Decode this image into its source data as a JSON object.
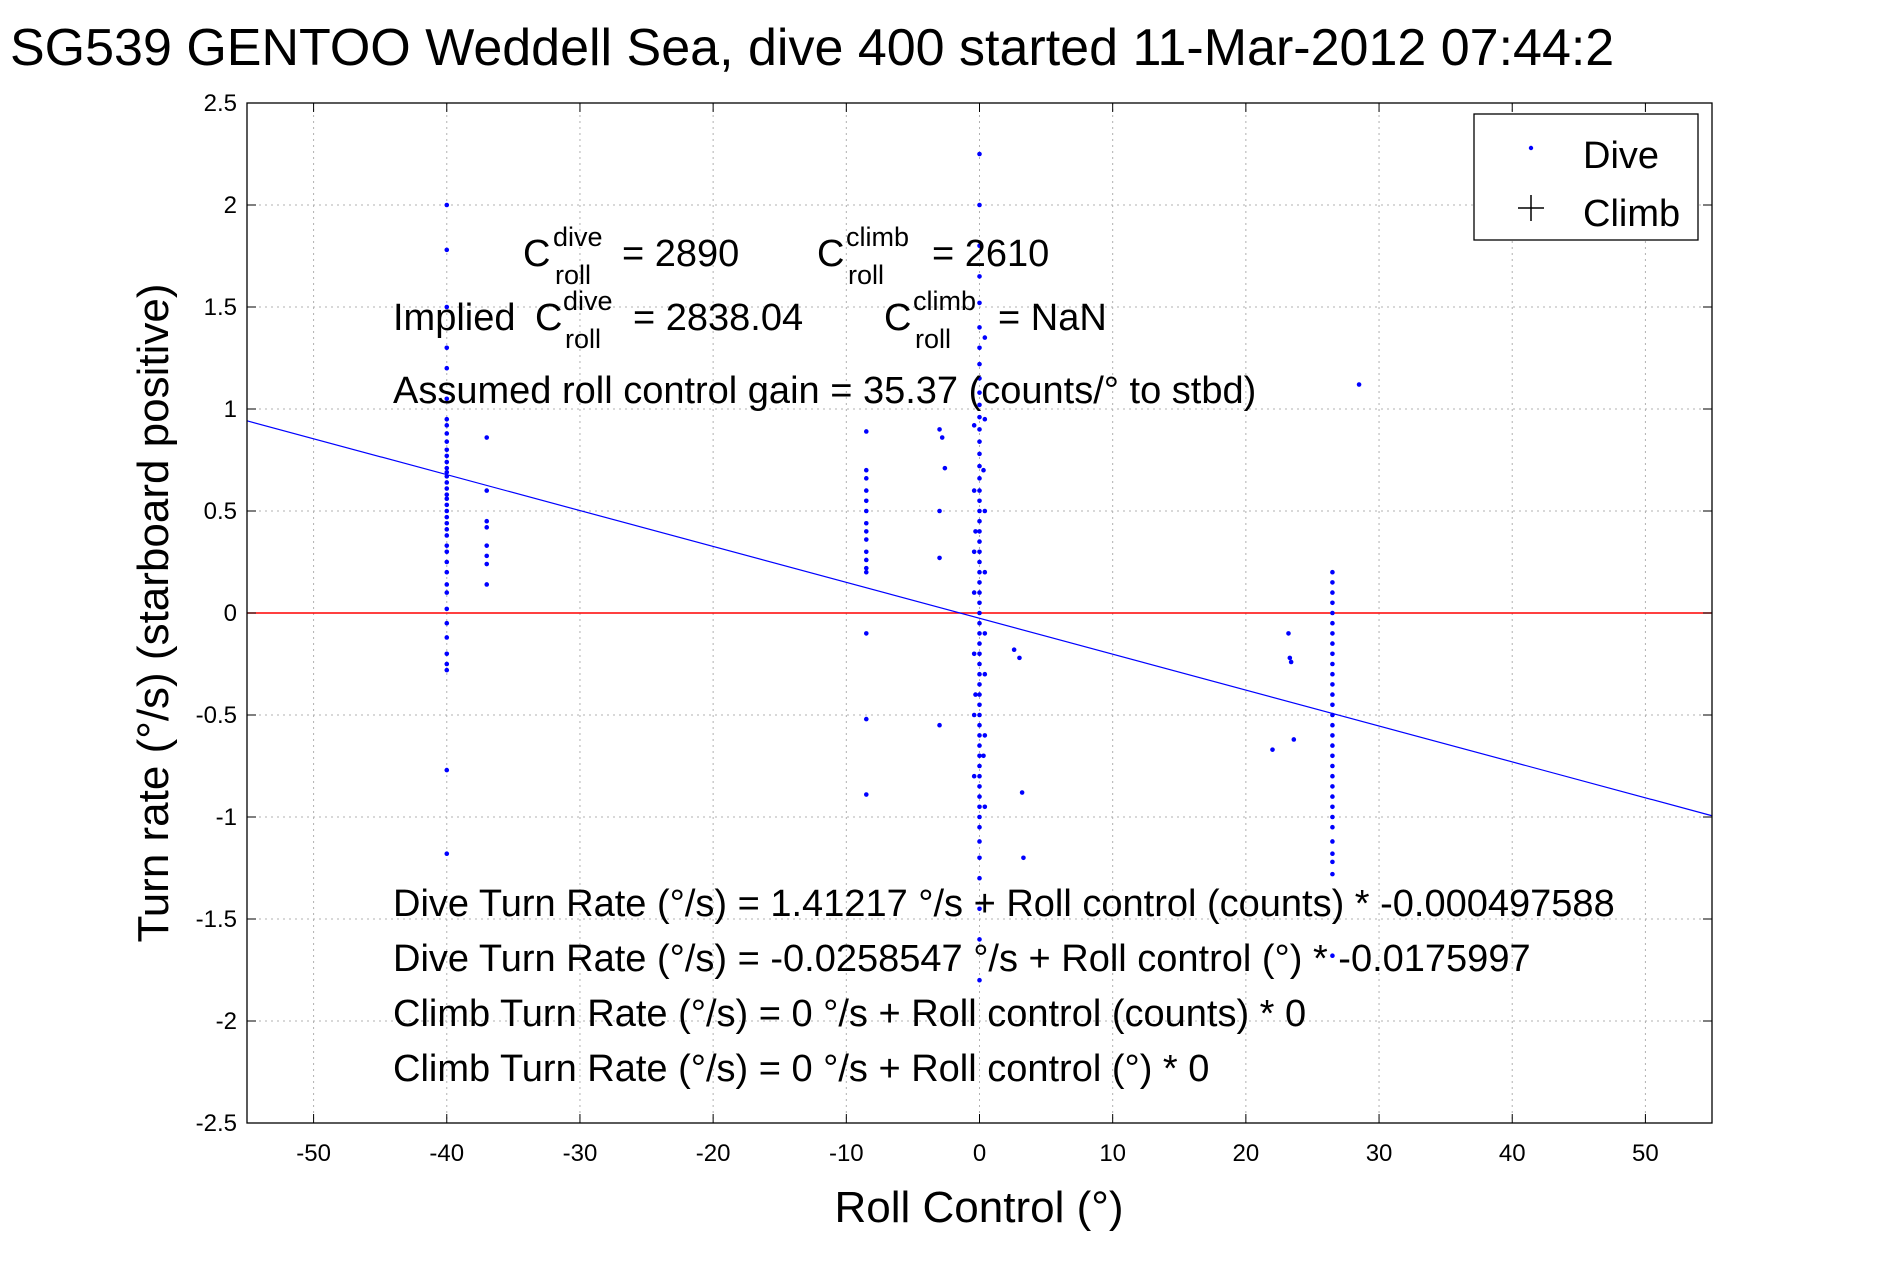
{
  "chart_data": {
    "type": "scatter",
    "title": "SG539 GENTOO Weddell Sea, dive 400 started 11-Mar-2012 07:44:2",
    "xlabel": "Roll Control (°)",
    "ylabel": "Turn rate (°/s) (starboard positive)",
    "xlim": [
      -55,
      55
    ],
    "ylim": [
      -2.5,
      2.5
    ],
    "xticks": [
      "-50",
      "-40",
      "-30",
      "-20",
      "-10",
      "0",
      "10",
      "20",
      "30",
      "40",
      "50"
    ],
    "yticks": [
      "-2.5",
      "-2",
      "-1.5",
      "-1",
      "-0.5",
      "0",
      "0.5",
      "1",
      "1.5",
      "2",
      "2.5"
    ],
    "grid": true,
    "legend": {
      "position": "top-right",
      "entries": [
        {
          "name": "Dive",
          "marker": "dot",
          "color": "#0000ff"
        },
        {
          "name": "Climb",
          "marker": "plus",
          "color": "#000000"
        }
      ]
    },
    "colors": {
      "dive": "#0000ff",
      "zero_line": "#ff0000",
      "fit_line": "#0000ff"
    },
    "reference_lines": [
      {
        "kind": "horizontal",
        "y": 0,
        "color": "#ff0000"
      },
      {
        "kind": "fit",
        "intercept": -0.0258547,
        "slope": -0.0175997,
        "color": "#0000ff"
      }
    ],
    "annotations": {
      "c_dive": {
        "base": "C",
        "sup": "dive",
        "sub": "roll",
        "value": "= 2890"
      },
      "c_climb": {
        "base": "C",
        "sup": "climb",
        "sub": "roll",
        "value": "= 2610"
      },
      "implied_prefix": "Implied",
      "implied_dive": {
        "base": "C",
        "sup": "dive",
        "sub": "roll",
        "value": "= 2838.04"
      },
      "implied_climb": {
        "base": "C",
        "sup": "climb",
        "sub": "roll",
        "value": "= NaN"
      },
      "gain": "Assumed roll control gain = 35.37 (counts/° to stbd)",
      "equations": [
        "Dive Turn Rate (°/s) = 1.41217 °/s + Roll control (counts) * -0.000497588",
        "Dive Turn Rate (°/s) = -0.0258547 °/s + Roll control (°) * -0.0175997",
        "Climb Turn Rate (°/s) = 0 °/s + Roll control (counts) * 0",
        "Climb Turn Rate (°/s) = 0 °/s + Roll control (°) * 0"
      ]
    },
    "series": [
      {
        "name": "Dive",
        "marker": "dot",
        "color": "#0000ff",
        "points": [
          [
            -40,
            2.0
          ],
          [
            -40,
            1.78
          ],
          [
            -40,
            1.5
          ],
          [
            -40,
            1.3
          ],
          [
            -40,
            1.2
          ],
          [
            -40,
            1.05
          ],
          [
            -40,
            0.95
          ],
          [
            -40,
            0.92
          ],
          [
            -40,
            0.88
          ],
          [
            -40,
            0.84
          ],
          [
            -40,
            0.8
          ],
          [
            -40,
            0.77
          ],
          [
            -40,
            0.74
          ],
          [
            -40,
            0.71
          ],
          [
            -40,
            0.69
          ],
          [
            -40,
            0.67
          ],
          [
            -40,
            0.64
          ],
          [
            -40,
            0.61
          ],
          [
            -40,
            0.58
          ],
          [
            -40,
            0.56
          ],
          [
            -40,
            0.53
          ],
          [
            -40,
            0.5
          ],
          [
            -40,
            0.47
          ],
          [
            -40,
            0.44
          ],
          [
            -40,
            0.41
          ],
          [
            -40,
            0.38
          ],
          [
            -40,
            0.33
          ],
          [
            -40,
            0.3
          ],
          [
            -40,
            0.25
          ],
          [
            -40,
            0.2
          ],
          [
            -40,
            0.14
          ],
          [
            -40,
            0.1
          ],
          [
            -40,
            0.02
          ],
          [
            -40,
            -0.05
          ],
          [
            -40,
            -0.12
          ],
          [
            -40,
            -0.2
          ],
          [
            -40,
            -0.25
          ],
          [
            -40,
            -0.28
          ],
          [
            -40,
            -0.77
          ],
          [
            -40,
            -1.18
          ],
          [
            -37,
            0.86
          ],
          [
            -37,
            0.6
          ],
          [
            -37,
            0.45
          ],
          [
            -37,
            0.42
          ],
          [
            -37,
            0.33
          ],
          [
            -37,
            0.28
          ],
          [
            -37,
            0.24
          ],
          [
            -37,
            0.14
          ],
          [
            -8.5,
            0.89
          ],
          [
            -8.5,
            0.7
          ],
          [
            -8.5,
            0.66
          ],
          [
            -8.5,
            0.6
          ],
          [
            -8.5,
            0.55
          ],
          [
            -8.5,
            0.5
          ],
          [
            -8.5,
            0.44
          ],
          [
            -8.5,
            0.4
          ],
          [
            -8.5,
            0.36
          ],
          [
            -8.5,
            0.3
          ],
          [
            -8.5,
            0.26
          ],
          [
            -8.5,
            0.22
          ],
          [
            -8.5,
            0.2
          ],
          [
            -8.5,
            -0.1
          ],
          [
            -8.5,
            -0.52
          ],
          [
            -8.5,
            -0.89
          ],
          [
            -3,
            0.9
          ],
          [
            -3,
            0.5
          ],
          [
            -3,
            0.27
          ],
          [
            -3,
            -0.55
          ],
          [
            -2.6,
            0.71
          ],
          [
            -2.8,
            0.86
          ],
          [
            0,
            2.25
          ],
          [
            0,
            2.0
          ],
          [
            0,
            1.8
          ],
          [
            0,
            1.65
          ],
          [
            0,
            1.52
          ],
          [
            0,
            1.4
          ],
          [
            0,
            1.3
          ],
          [
            0,
            1.22
          ],
          [
            0,
            1.15
          ],
          [
            0,
            1.08
          ],
          [
            0,
            1.02
          ],
          [
            0,
            0.96
          ],
          [
            0,
            0.9
          ],
          [
            0,
            0.84
          ],
          [
            0,
            0.78
          ],
          [
            0,
            0.72
          ],
          [
            0,
            0.66
          ],
          [
            0,
            0.6
          ],
          [
            0,
            0.55
          ],
          [
            0,
            0.5
          ],
          [
            0,
            0.45
          ],
          [
            0,
            0.4
          ],
          [
            0,
            0.35
          ],
          [
            0,
            0.3
          ],
          [
            0,
            0.25
          ],
          [
            0,
            0.2
          ],
          [
            0,
            0.15
          ],
          [
            0,
            0.1
          ],
          [
            0,
            0.05
          ],
          [
            0,
            0.0
          ],
          [
            0,
            -0.05
          ],
          [
            0,
            -0.1
          ],
          [
            0,
            -0.15
          ],
          [
            0,
            -0.2
          ],
          [
            0,
            -0.25
          ],
          [
            0,
            -0.3
          ],
          [
            0,
            -0.35
          ],
          [
            0,
            -0.4
          ],
          [
            0,
            -0.45
          ],
          [
            0,
            -0.5
          ],
          [
            0,
            -0.55
          ],
          [
            0,
            -0.6
          ],
          [
            0,
            -0.65
          ],
          [
            0,
            -0.7
          ],
          [
            0,
            -0.75
          ],
          [
            0,
            -0.8
          ],
          [
            0,
            -0.85
          ],
          [
            0,
            -0.9
          ],
          [
            0,
            -0.95
          ],
          [
            0,
            -1.0
          ],
          [
            0,
            -1.05
          ],
          [
            0,
            -1.12
          ],
          [
            0,
            -1.2
          ],
          [
            0,
            -1.3
          ],
          [
            0,
            -1.45
          ],
          [
            0,
            -1.6
          ],
          [
            0,
            -1.8
          ],
          [
            -0.4,
            0.92
          ],
          [
            -0.4,
            0.6
          ],
          [
            -0.4,
            0.3
          ],
          [
            -0.4,
            0.1
          ],
          [
            -0.4,
            -0.2
          ],
          [
            -0.4,
            -0.5
          ],
          [
            -0.4,
            -0.8
          ],
          [
            -0.3,
            0.4
          ],
          [
            -0.3,
            -0.4
          ],
          [
            0.4,
            1.35
          ],
          [
            0.4,
            0.95
          ],
          [
            0.4,
            0.5
          ],
          [
            0.4,
            0.2
          ],
          [
            0.4,
            -0.1
          ],
          [
            0.4,
            -0.3
          ],
          [
            0.4,
            -0.6
          ],
          [
            0.4,
            -0.95
          ],
          [
            0.3,
            0.7
          ],
          [
            0.3,
            -0.7
          ],
          [
            2.6,
            -0.18
          ],
          [
            3.0,
            -0.22
          ],
          [
            3.2,
            -0.88
          ],
          [
            3.3,
            -1.2
          ],
          [
            22,
            -0.67
          ],
          [
            23.2,
            -0.1
          ],
          [
            23.3,
            -0.22
          ],
          [
            23.4,
            -0.24
          ],
          [
            23.6,
            -0.62
          ],
          [
            26.5,
            0.2
          ],
          [
            26.5,
            0.15
          ],
          [
            26.5,
            0.1
          ],
          [
            26.5,
            0.05
          ],
          [
            26.5,
            0.0
          ],
          [
            26.5,
            -0.05
          ],
          [
            26.5,
            -0.1
          ],
          [
            26.5,
            -0.15
          ],
          [
            26.5,
            -0.2
          ],
          [
            26.5,
            -0.25
          ],
          [
            26.5,
            -0.3
          ],
          [
            26.5,
            -0.35
          ],
          [
            26.5,
            -0.4
          ],
          [
            26.5,
            -0.45
          ],
          [
            26.5,
            -0.5
          ],
          [
            26.5,
            -0.55
          ],
          [
            26.5,
            -0.6
          ],
          [
            26.5,
            -0.65
          ],
          [
            26.5,
            -0.7
          ],
          [
            26.5,
            -0.75
          ],
          [
            26.5,
            -0.8
          ],
          [
            26.5,
            -0.85
          ],
          [
            26.5,
            -0.9
          ],
          [
            26.5,
            -0.95
          ],
          [
            26.5,
            -1.0
          ],
          [
            26.5,
            -1.05
          ],
          [
            26.5,
            -1.12
          ],
          [
            26.5,
            -1.18
          ],
          [
            26.5,
            -1.22
          ],
          [
            26.5,
            -1.28
          ],
          [
            26.5,
            -1.68
          ],
          [
            28.5,
            1.12
          ]
        ]
      }
    ]
  }
}
